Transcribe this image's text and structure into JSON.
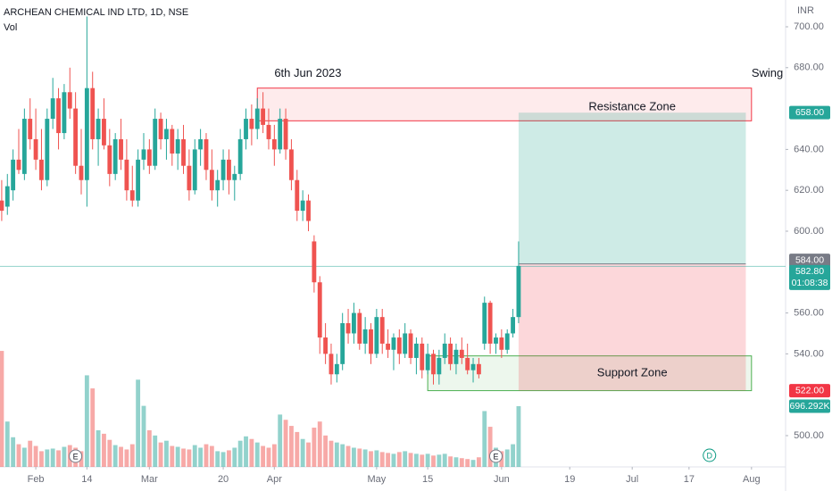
{
  "chart_data": {
    "type": "candlestick",
    "title": "ARCHEAN CHEMICAL IND LTD, 1D, NSE",
    "subtitle": "Vol",
    "currency": "INR",
    "up_color": "#26a69a",
    "down_color": "#ef5350",
    "grid": false,
    "xlim": [
      -0.3,
      138
    ],
    "xticks": [
      {
        "value": 6,
        "label": "Feb"
      },
      {
        "value": 15,
        "label": "14"
      },
      {
        "value": 26,
        "label": "Mar"
      },
      {
        "value": 39,
        "label": "20"
      },
      {
        "value": 48,
        "label": "Apr"
      },
      {
        "value": 66,
        "label": "May"
      },
      {
        "value": 75,
        "label": "15"
      },
      {
        "value": 88,
        "label": "Jun"
      },
      {
        "value": 100,
        "label": "19"
      },
      {
        "value": 111,
        "label": "Jul"
      },
      {
        "value": 121,
        "label": "17"
      },
      {
        "value": 132,
        "label": "Aug"
      }
    ],
    "ylim": [
      484.7,
      713.1
    ],
    "yticks": [
      {
        "value": 500,
        "label": "500.00"
      },
      {
        "value": 540,
        "label": "540.00"
      },
      {
        "value": 560,
        "label": "560.00"
      },
      {
        "value": 600,
        "label": "600.00"
      },
      {
        "value": 620,
        "label": "620.00"
      },
      {
        "value": 640,
        "label": "640.00"
      },
      {
        "value": 680,
        "label": "680.00"
      },
      {
        "value": 700,
        "label": "700.00"
      }
    ],
    "candles": [
      [
        615,
        625,
        605,
        610
      ],
      [
        612,
        628,
        608,
        622
      ],
      [
        620,
        640,
        615,
        635
      ],
      [
        635,
        650,
        628,
        630
      ],
      [
        628,
        660,
        625,
        655
      ],
      [
        655,
        665,
        640,
        645
      ],
      [
        645,
        660,
        630,
        635
      ],
      [
        635,
        650,
        620,
        625
      ],
      [
        625,
        660,
        622,
        655
      ],
      [
        655,
        675,
        650,
        665
      ],
      [
        665,
        670,
        640,
        648
      ],
      [
        648,
        672,
        645,
        668
      ],
      [
        668,
        680,
        655,
        660
      ],
      [
        660,
        668,
        628,
        632
      ],
      [
        632,
        650,
        618,
        625
      ],
      [
        625,
        705,
        612,
        670
      ],
      [
        670,
        678,
        640,
        645
      ],
      [
        645,
        660,
        632,
        655
      ],
      [
        655,
        665,
        640,
        642
      ],
      [
        642,
        650,
        622,
        628
      ],
      [
        628,
        648,
        625,
        645
      ],
      [
        645,
        655,
        630,
        635
      ],
      [
        635,
        645,
        615,
        620
      ],
      [
        620,
        632,
        612,
        615
      ],
      [
        615,
        640,
        612,
        635
      ],
      [
        635,
        648,
        630,
        640
      ],
      [
        640,
        645,
        628,
        632
      ],
      [
        632,
        660,
        630,
        655
      ],
      [
        655,
        658,
        640,
        645
      ],
      [
        645,
        655,
        635,
        650
      ],
      [
        650,
        652,
        632,
        638
      ],
      [
        638,
        650,
        630,
        645
      ],
      [
        645,
        652,
        628,
        632
      ],
      [
        632,
        640,
        615,
        620
      ],
      [
        620,
        645,
        618,
        640
      ],
      [
        640,
        650,
        632,
        645
      ],
      [
        645,
        648,
        625,
        630
      ],
      [
        630,
        640,
        615,
        620
      ],
      [
        620,
        630,
        612,
        625
      ],
      [
        625,
        640,
        620,
        635
      ],
      [
        635,
        640,
        618,
        625
      ],
      [
        625,
        632,
        615,
        628
      ],
      [
        628,
        650,
        625,
        645
      ],
      [
        645,
        660,
        640,
        655
      ],
      [
        655,
        662,
        642,
        650
      ],
      [
        650,
        665,
        645,
        660
      ],
      [
        660,
        668,
        648,
        652
      ],
      [
        652,
        660,
        640,
        645
      ],
      [
        645,
        652,
        632,
        640
      ],
      [
        640,
        660,
        638,
        655
      ],
      [
        655,
        660,
        635,
        640
      ],
      [
        640,
        645,
        620,
        625
      ],
      [
        625,
        630,
        605,
        610
      ],
      [
        610,
        620,
        605,
        615
      ],
      [
        615,
        618,
        600,
        605
      ],
      [
        595,
        598,
        570,
        575
      ],
      [
        575,
        578,
        540,
        548
      ],
      [
        548,
        555,
        535,
        540
      ],
      [
        540,
        545,
        525,
        530
      ],
      [
        530,
        540,
        526,
        535
      ],
      [
        535,
        560,
        532,
        555
      ],
      [
        555,
        562,
        545,
        550
      ],
      [
        550,
        565,
        545,
        560
      ],
      [
        560,
        562,
        542,
        545
      ],
      [
        545,
        558,
        540,
        552
      ],
      [
        552,
        555,
        535,
        540
      ],
      [
        540,
        562,
        538,
        558
      ],
      [
        558,
        562,
        540,
        545
      ],
      [
        545,
        552,
        538,
        542
      ],
      [
        542,
        550,
        532,
        548
      ],
      [
        548,
        552,
        535,
        540
      ],
      [
        540,
        555,
        538,
        550
      ],
      [
        550,
        552,
        535,
        538
      ],
      [
        538,
        548,
        530,
        545
      ],
      [
        545,
        548,
        528,
        532
      ],
      [
        532,
        545,
        530,
        540
      ],
      [
        540,
        542,
        525,
        530
      ],
      [
        530,
        542,
        525,
        538
      ],
      [
        538,
        550,
        535,
        545
      ],
      [
        545,
        548,
        532,
        535
      ],
      [
        535,
        545,
        530,
        542
      ],
      [
        542,
        548,
        535,
        538
      ],
      [
        538,
        545,
        530,
        532
      ],
      [
        532,
        538,
        526,
        535
      ],
      [
        535,
        538,
        528,
        530
      ],
      [
        545,
        568,
        542,
        565
      ],
      [
        565,
        566,
        540,
        545
      ],
      [
        545,
        550,
        540,
        548
      ],
      [
        548,
        552,
        538,
        542
      ],
      [
        542,
        552,
        540,
        550
      ],
      [
        550,
        562,
        548,
        558
      ],
      [
        558,
        595,
        555,
        583
      ]
    ],
    "volumes": [
      1330,
      520,
      340,
      260,
      220,
      300,
      240,
      180,
      200,
      210,
      190,
      230,
      250,
      220,
      180,
      1050,
      900,
      420,
      380,
      310,
      250,
      230,
      200,
      260,
      1000,
      700,
      420,
      360,
      280,
      300,
      240,
      230,
      210,
      200,
      250,
      220,
      260,
      240,
      180,
      170,
      190,
      220,
      300,
      350,
      320,
      280,
      240,
      220,
      260,
      600,
      540,
      470,
      400,
      320,
      280,
      450,
      520,
      360,
      300,
      280,
      260,
      240,
      220,
      210,
      200,
      180,
      190,
      170,
      160,
      150,
      170,
      180,
      160,
      150,
      140,
      150,
      130,
      140,
      150,
      120,
      110,
      100,
      90,
      80,
      110,
      640,
      460,
      220,
      180,
      200,
      260,
      696.292
    ],
    "last_volume_label": "696.292K",
    "zones": [
      {
        "label": "Resistance Zone",
        "top": 670,
        "bottom": 654,
        "start": 45,
        "end": 132
      },
      {
        "label": "Support Zone",
        "top": 539,
        "bottom": 522,
        "start": 75,
        "end": 132
      }
    ],
    "position": {
      "start": 91,
      "end": 131,
      "target": 658,
      "entry": 584,
      "stop": 522
    },
    "last_price": 582.8,
    "price_labels": [
      {
        "value": 658,
        "label": "658.00",
        "color": "#26a69a"
      },
      {
        "value": 584,
        "label": "584.00",
        "color": "#787b86"
      },
      {
        "value": 582.8,
        "label": "582.80",
        "color": "#26a69a"
      },
      {
        "value": 522,
        "label": "522.00",
        "color": "#f23645"
      }
    ],
    "countdown": "01:08:38",
    "annotations": [
      {
        "text": "6th Jun 2023",
        "x": 48,
        "y": 677
      },
      {
        "text": "Swing",
        "x": 132,
        "y": 677
      }
    ],
    "events": [
      {
        "x": 13,
        "label": "E"
      },
      {
        "x": 87,
        "label": "E"
      },
      {
        "x": 124.6,
        "label": "D"
      }
    ]
  }
}
